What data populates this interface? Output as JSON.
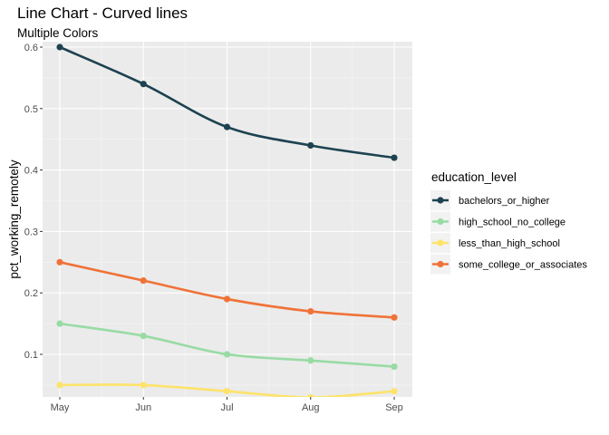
{
  "chart_data": {
    "type": "line",
    "title": "Line Chart - Curved lines",
    "subtitle": "Multiple Colors",
    "xlabel": "",
    "ylabel": "pct_working_remotely",
    "categories": [
      "May",
      "Jun",
      "Jul",
      "Aug",
      "Sep"
    ],
    "ylim": [
      0.03,
      0.6
    ],
    "yticks": [
      "0.1",
      "0.2",
      "0.3",
      "0.4",
      "0.5",
      "0.6"
    ],
    "grid": true,
    "legend": {
      "title": "education_level",
      "position": "right"
    },
    "series": [
      {
        "name": "bachelors_or_higher",
        "color": "#1d4250",
        "values": [
          0.6,
          0.54,
          0.47,
          0.44,
          0.42
        ]
      },
      {
        "name": "high_school_no_college",
        "color": "#98dba4",
        "values": [
          0.15,
          0.13,
          0.1,
          0.09,
          0.08
        ]
      },
      {
        "name": "less_than_high_school",
        "color": "#fde36a",
        "values": [
          0.05,
          0.05,
          0.04,
          0.03,
          0.04
        ]
      },
      {
        "name": "some_college_or_associates",
        "color": "#f07238",
        "values": [
          0.25,
          0.22,
          0.19,
          0.17,
          0.16
        ]
      }
    ]
  }
}
